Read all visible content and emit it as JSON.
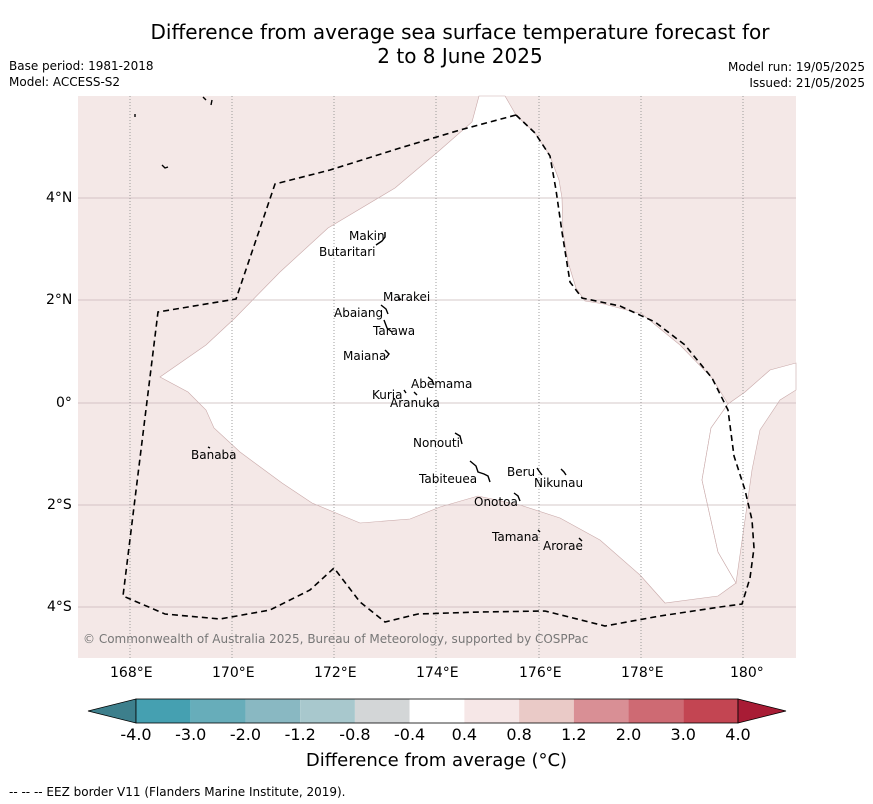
{
  "title_line1": "Difference from average sea surface temperature forecast for",
  "title_line2": "2 to 8 June 2025",
  "meta_left": [
    "Base period: 1981-2018",
    "Model: ACCESS-S2"
  ],
  "meta_right": [
    "Model run: 19/05/2025",
    "Issued: 21/05/2025"
  ],
  "copyright": "© Commonwealth of Australia 2025, Bureau of Meteorology, supported by COSPPac",
  "x_ticks": [
    "168°E",
    "170°E",
    "172°E",
    "174°E",
    "176°E",
    "178°E",
    "180°"
  ],
  "y_ticks": [
    "4°N",
    "2°N",
    "0°",
    "2°S",
    "4°S"
  ],
  "places": [
    "Makin",
    "Butaritari",
    "Marakei",
    "Abaiang",
    "Tarawa",
    "Maiana",
    "Abemama",
    "Kuria",
    "Aranuka",
    "Nonouti",
    "Banaba",
    "Tabiteuea",
    "Beru",
    "Nikunau",
    "Onotoa",
    "Tamana",
    "Arorae"
  ],
  "colorbar": {
    "ticks": [
      "-4.0",
      "-3.0",
      "-2.0",
      "-1.2",
      "-0.8",
      "-0.4",
      "0.4",
      "0.8",
      "1.2",
      "2.0",
      "3.0",
      "4.0"
    ],
    "colors": [
      "#3d7f8c",
      "#45a0b1",
      "#67adba",
      "#89b8c2",
      "#a8c8cd",
      "#d3d6d7",
      "#ffffff",
      "#f6e7e7",
      "#eacac7",
      "#d98f95",
      "#ce6a73",
      "#c34552",
      "#a81c35"
    ],
    "label": "Difference from average (°C)"
  },
  "footer": "--  --  -- EEZ border V11 (Flanders Marine Institute, 2019)."
}
